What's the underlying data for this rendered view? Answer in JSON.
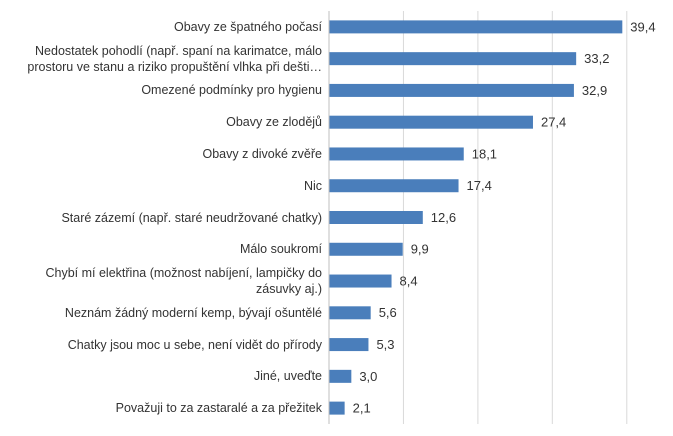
{
  "chart_data": {
    "type": "bar",
    "orientation": "horizontal",
    "categories": [
      "Obavy ze špatného počasí",
      "Nedostatek pohodlí (např. spaní na karimatce, málo prostoru ve stanu a riziko propuštění vlhka při dešti…",
      "Omezené podmínky pro hygienu",
      "Obavy ze zlodějů",
      "Obavy z divoké zvěře",
      "Nic",
      "Staré zázemí (např. staré neudržované chatky)",
      "Málo soukromí",
      "Chybí mí elektřina (možnost nabíjení, lampičky do zásuvky aj.)",
      "Neznám žádný moderní kemp, bývají ošuntělé",
      "Chatky jsou moc u sebe, není vidět do přírody",
      "Jiné, uveďte",
      "Považuji to za zastaralé a za přežitek"
    ],
    "values": [
      39.4,
      33.2,
      32.9,
      27.4,
      18.1,
      17.4,
      12.6,
      9.9,
      8.4,
      5.6,
      5.3,
      3.0,
      2.1
    ],
    "value_labels": [
      "39,4",
      "33,2",
      "32,9",
      "27,4",
      "18,1",
      "17,4",
      "12,6",
      "9,9",
      "8,4",
      "5,6",
      "5,3",
      "3,0",
      "2,1"
    ],
    "color": "#4a7ebb",
    "xlim": [
      0,
      45
    ],
    "xticks": [
      0,
      10,
      20,
      30,
      40
    ],
    "grid": true
  }
}
